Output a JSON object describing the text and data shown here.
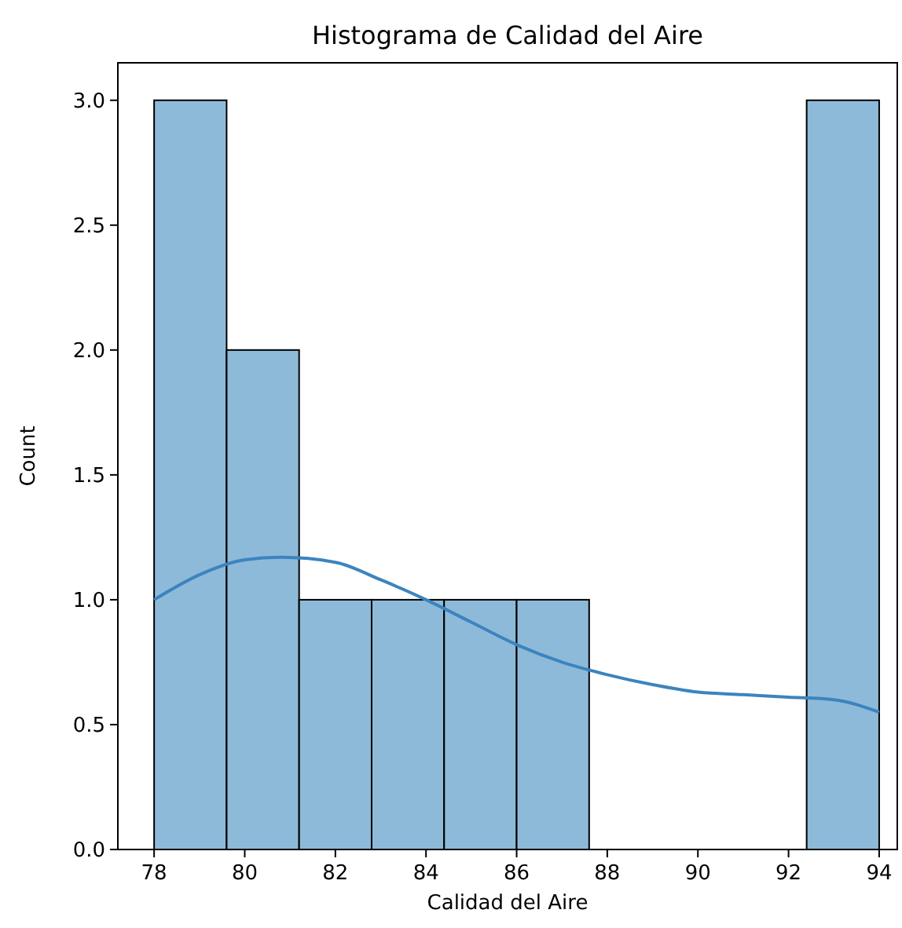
{
  "chart_data": {
    "type": "histogram",
    "title": "Histograma de Calidad del Aire",
    "xlabel": "Calidad del Aire",
    "ylabel": "Count",
    "bins": [
      78,
      79.6,
      81.2,
      82.8,
      84.4,
      86,
      87.6,
      89.2,
      90.8,
      92.4,
      94
    ],
    "series": [
      {
        "color": "#8ebad9",
        "values": [
          3,
          2,
          1,
          1,
          1,
          1,
          0,
          0,
          0,
          3
        ]
      },
      {
        "type": "line",
        "color": "#3b84bf",
        "x": [
          78,
          79,
          80,
          80.8,
          82,
          83,
          84,
          85,
          86,
          87,
          88,
          89,
          90,
          91,
          92,
          93,
          94
        ],
        "values": [
          1.0,
          1.1,
          1.16,
          1.17,
          1.15,
          1.08,
          1.0,
          0.91,
          0.82,
          0.75,
          0.7,
          0.66,
          0.63,
          0.62,
          0.61,
          0.6,
          0.55
        ]
      }
    ],
    "xlim": [
      77.2,
      94.4
    ],
    "ylim": [
      0,
      3.15
    ],
    "xticks": [
      78,
      80,
      82,
      84,
      86,
      88,
      90,
      92,
      94
    ],
    "yticks": [
      {
        "value": 0,
        "label": "0.0"
      },
      {
        "value": 0.5,
        "label": "0.5"
      },
      {
        "value": 1,
        "label": "1.0"
      },
      {
        "value": 1.5,
        "label": "1.5"
      },
      {
        "value": 2,
        "label": "2.0"
      },
      {
        "value": 2.5,
        "label": "2.5"
      },
      {
        "value": 3,
        "label": "3.0"
      }
    ],
    "grid": false
  }
}
